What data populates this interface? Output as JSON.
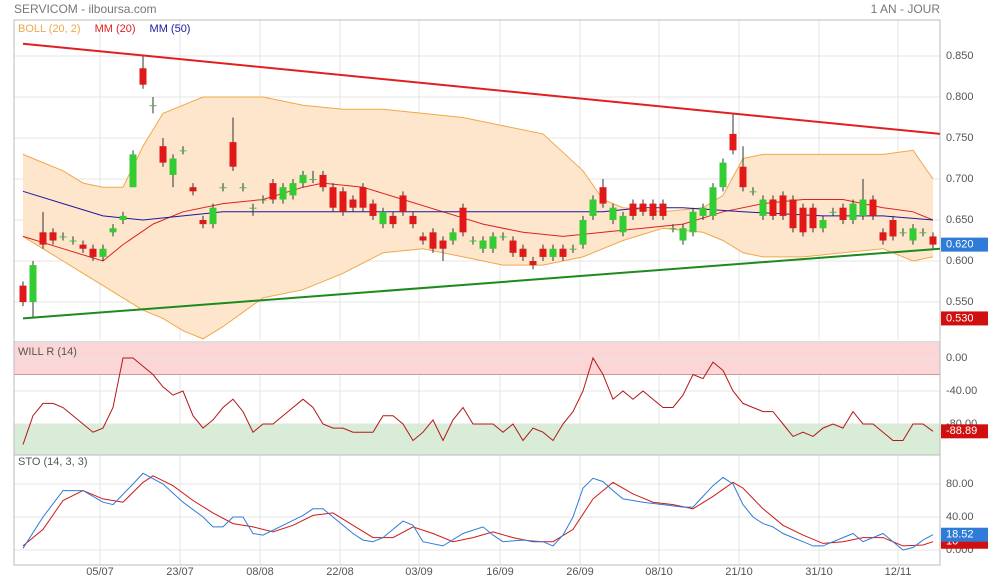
{
  "chart_data": [
    {
      "type": "candlestick",
      "title": "SERVICOM - ilboursa.com",
      "period": "1 AN - JOUR",
      "up_color": "#33cc33",
      "down_color": "#e01818",
      "open": [
        0.57,
        0.55,
        0.635,
        0.635,
        0.63,
        0.625,
        0.62,
        0.615,
        0.605,
        0.635,
        0.65,
        0.69,
        0.835,
        0.79,
        0.74,
        0.705,
        0.735,
        0.69,
        0.65,
        0.645,
        0.69,
        0.745,
        0.69,
        0.665,
        0.675,
        0.695,
        0.675,
        0.68,
        0.695,
        0.7,
        0.705,
        0.69,
        0.685,
        0.675,
        0.69,
        0.67,
        0.645,
        0.655,
        0.68,
        0.655,
        0.63,
        0.635,
        0.625,
        0.625,
        0.665,
        0.625,
        0.615,
        0.615,
        0.63,
        0.625,
        0.615,
        0.6,
        0.615,
        0.605,
        0.615,
        0.615,
        0.62,
        0.655,
        0.69,
        0.65,
        0.635,
        0.67,
        0.67,
        0.67,
        0.67,
        0.64,
        0.625,
        0.635,
        0.655,
        0.655,
        0.69,
        0.755,
        0.715,
        0.685,
        0.655,
        0.675,
        0.68,
        0.675,
        0.665,
        0.665,
        0.64,
        0.66,
        0.665,
        0.65,
        0.655,
        0.675,
        0.635,
        0.65,
        0.635,
        0.625,
        0.635,
        0.63
      ],
      "high": [
        0.575,
        0.6,
        0.66,
        0.64,
        0.635,
        0.63,
        0.625,
        0.62,
        0.62,
        0.645,
        0.66,
        0.735,
        0.85,
        0.8,
        0.75,
        0.73,
        0.74,
        0.695,
        0.655,
        0.67,
        0.695,
        0.775,
        0.695,
        0.67,
        0.68,
        0.7,
        0.695,
        0.7,
        0.71,
        0.71,
        0.71,
        0.695,
        0.69,
        0.68,
        0.695,
        0.675,
        0.665,
        0.66,
        0.685,
        0.66,
        0.635,
        0.64,
        0.63,
        0.64,
        0.67,
        0.63,
        0.63,
        0.635,
        0.635,
        0.63,
        0.62,
        0.605,
        0.62,
        0.62,
        0.62,
        0.62,
        0.655,
        0.68,
        0.7,
        0.67,
        0.66,
        0.675,
        0.675,
        0.675,
        0.675,
        0.645,
        0.645,
        0.665,
        0.67,
        0.695,
        0.725,
        0.78,
        0.74,
        0.69,
        0.68,
        0.68,
        0.685,
        0.68,
        0.67,
        0.67,
        0.655,
        0.665,
        0.67,
        0.675,
        0.7,
        0.68,
        0.64,
        0.655,
        0.64,
        0.645,
        0.64,
        0.635
      ],
      "low": [
        0.545,
        0.53,
        0.615,
        0.62,
        0.625,
        0.62,
        0.61,
        0.6,
        0.6,
        0.63,
        0.645,
        0.69,
        0.81,
        0.78,
        0.715,
        0.69,
        0.73,
        0.68,
        0.64,
        0.64,
        0.685,
        0.71,
        0.685,
        0.655,
        0.67,
        0.67,
        0.67,
        0.675,
        0.69,
        0.695,
        0.685,
        0.66,
        0.655,
        0.66,
        0.66,
        0.65,
        0.64,
        0.64,
        0.655,
        0.64,
        0.62,
        0.61,
        0.6,
        0.62,
        0.63,
        0.62,
        0.61,
        0.61,
        0.625,
        0.605,
        0.6,
        0.59,
        0.6,
        0.6,
        0.6,
        0.61,
        0.615,
        0.65,
        0.665,
        0.645,
        0.63,
        0.65,
        0.655,
        0.65,
        0.65,
        0.635,
        0.62,
        0.63,
        0.65,
        0.65,
        0.685,
        0.73,
        0.685,
        0.68,
        0.65,
        0.65,
        0.65,
        0.635,
        0.63,
        0.635,
        0.635,
        0.655,
        0.645,
        0.645,
        0.65,
        0.65,
        0.62,
        0.625,
        0.63,
        0.62,
        0.63,
        0.615
      ],
      "close": [
        0.55,
        0.595,
        0.62,
        0.625,
        0.63,
        0.625,
        0.615,
        0.605,
        0.615,
        0.64,
        0.655,
        0.73,
        0.815,
        0.79,
        0.72,
        0.725,
        0.735,
        0.685,
        0.645,
        0.665,
        0.69,
        0.715,
        0.69,
        0.665,
        0.675,
        0.675,
        0.69,
        0.695,
        0.705,
        0.7,
        0.69,
        0.665,
        0.66,
        0.665,
        0.665,
        0.655,
        0.66,
        0.645,
        0.66,
        0.645,
        0.625,
        0.615,
        0.615,
        0.635,
        0.635,
        0.625,
        0.625,
        0.63,
        0.63,
        0.61,
        0.605,
        0.595,
        0.605,
        0.615,
        0.605,
        0.615,
        0.65,
        0.675,
        0.67,
        0.665,
        0.655,
        0.655,
        0.66,
        0.655,
        0.655,
        0.64,
        0.64,
        0.66,
        0.665,
        0.69,
        0.72,
        0.735,
        0.69,
        0.685,
        0.675,
        0.655,
        0.655,
        0.64,
        0.635,
        0.64,
        0.65,
        0.66,
        0.65,
        0.67,
        0.675,
        0.655,
        0.625,
        0.63,
        0.635,
        0.64,
        0.635,
        0.62
      ],
      "bands": {
        "name": "BOLL (20, 2)",
        "color": "#f0a848",
        "fill": "#fde6cc",
        "x": [
          0,
          2,
          4,
          6,
          8,
          10,
          12,
          14,
          16,
          18,
          20,
          24,
          28,
          32,
          36,
          40,
          44,
          48,
          52,
          56,
          58,
          60,
          64,
          68,
          70,
          72,
          74,
          78,
          82,
          86,
          89,
          91
        ],
        "upper": [
          0.73,
          0.72,
          0.71,
          0.695,
          0.69,
          0.69,
          0.74,
          0.78,
          0.79,
          0.8,
          0.8,
          0.8,
          0.79,
          0.785,
          0.785,
          0.78,
          0.775,
          0.765,
          0.755,
          0.71,
          0.675,
          0.665,
          0.66,
          0.665,
          0.68,
          0.725,
          0.73,
          0.73,
          0.73,
          0.73,
          0.735,
          0.7
        ],
        "lower": [
          0.63,
          0.615,
          0.6,
          0.585,
          0.57,
          0.555,
          0.54,
          0.53,
          0.515,
          0.505,
          0.52,
          0.555,
          0.565,
          0.585,
          0.61,
          0.615,
          0.605,
          0.595,
          0.595,
          0.605,
          0.615,
          0.625,
          0.64,
          0.635,
          0.625,
          0.61,
          0.605,
          0.605,
          0.61,
          0.615,
          0.6,
          0.605
        ]
      },
      "series": [
        {
          "name": "MM (20)",
          "color": "#e02020",
          "x": [
            0,
            4,
            8,
            10,
            13,
            16,
            20,
            24,
            28,
            30,
            34,
            38,
            42,
            46,
            50,
            54,
            58,
            62,
            66,
            70,
            74,
            78,
            82,
            86,
            89,
            91
          ],
          "values": [
            0.63,
            0.615,
            0.6,
            0.62,
            0.645,
            0.66,
            0.67,
            0.675,
            0.69,
            0.695,
            0.69,
            0.675,
            0.66,
            0.645,
            0.635,
            0.63,
            0.635,
            0.64,
            0.645,
            0.66,
            0.67,
            0.675,
            0.675,
            0.665,
            0.66,
            0.65
          ]
        },
        {
          "name": "MM (50)",
          "color": "#1a1aa0",
          "x": [
            0,
            4,
            8,
            12,
            16,
            20,
            30,
            40,
            50,
            58,
            62,
            66,
            72,
            80,
            86,
            91
          ],
          "values": [
            0.685,
            0.67,
            0.655,
            0.65,
            0.655,
            0.66,
            0.66,
            0.66,
            0.66,
            0.66,
            0.665,
            0.665,
            0.66,
            0.655,
            0.655,
            0.65
          ]
        }
      ],
      "trendlines": [
        {
          "color": "#e02020",
          "x": [
            0,
            91.7
          ],
          "values": [
            0.865,
            0.755
          ]
        },
        {
          "color": "#1e8a1e",
          "x": [
            0,
            91.7
          ],
          "values": [
            0.53,
            0.615
          ]
        }
      ],
      "price_labels": [
        {
          "value": 0.62,
          "label": "0.620",
          "color": "#2f7bd8"
        },
        {
          "value": 0.53,
          "label": "0.530",
          "color": "#d01010"
        }
      ],
      "ylim": [
        0.5037,
        0.8939
      ],
      "yticks": [
        {
          "value": 0.85,
          "label": "0.850"
        },
        {
          "value": 0.8,
          "label": "0.800"
        },
        {
          "value": 0.75,
          "label": "0.750"
        },
        {
          "value": 0.7,
          "label": "0.700"
        },
        {
          "value": 0.65,
          "label": "0.650"
        },
        {
          "value": 0.6,
          "label": "0.600"
        },
        {
          "value": 0.55,
          "label": "0.550"
        }
      ]
    },
    {
      "type": "line",
      "title": "WILL R (14)",
      "overbought": -20,
      "overbought_color": "#fcd6d6",
      "oversold": -80,
      "oversold_color": "#d8ecd8",
      "series": [
        {
          "color": "#b41818",
          "box_color": "#d01010",
          "values": [
            -105,
            -70,
            -55,
            -55,
            -60,
            -70,
            -80,
            -90,
            -85,
            -60,
            0,
            0,
            -10,
            -20,
            -35,
            -45,
            -40,
            -70,
            -85,
            -75,
            -60,
            -50,
            -65,
            -90,
            -80,
            -80,
            -70,
            -60,
            -50,
            -60,
            -80,
            -85,
            -85,
            -90,
            -90,
            -90,
            -70,
            -70,
            -80,
            -100,
            -90,
            -75,
            -100,
            -75,
            -60,
            -80,
            -80,
            -80,
            -90,
            -80,
            -100,
            -85,
            -90,
            -100,
            -80,
            -65,
            -40,
            0,
            -20,
            -50,
            -40,
            -50,
            -40,
            -50,
            -60,
            -60,
            -45,
            -20,
            -25,
            -5,
            -15,
            -40,
            -55,
            -60,
            -65,
            -65,
            -80,
            -95,
            -90,
            -95,
            -85,
            -80,
            -85,
            -65,
            -80,
            -80,
            -90,
            -100,
            -100,
            -80,
            -80,
            -88.89
          ]
        }
      ],
      "ylim": [
        -117.6,
        18.2
      ],
      "yticks": [
        {
          "value": 0,
          "label": "0.00"
        },
        {
          "value": -40,
          "label": "-40.00"
        },
        {
          "value": -80,
          "label": "-80.00"
        }
      ]
    },
    {
      "type": "line",
      "title": "STO (14, 3, 3)",
      "series": [
        {
          "color": "#d01818",
          "box_color": "#d01010",
          "x": [
            0,
            2,
            4,
            6,
            8,
            10,
            12,
            13,
            15,
            17,
            19,
            21,
            23,
            25,
            27,
            29,
            31,
            33,
            35,
            37,
            39,
            41,
            43,
            45,
            47,
            49,
            51,
            53,
            55,
            57,
            59,
            61,
            63,
            65,
            67,
            69,
            71,
            72,
            74,
            76,
            78,
            80,
            82,
            84,
            86,
            88,
            90,
            91
          ],
          "values": [
            5,
            25,
            60,
            72,
            62,
            58,
            82,
            90,
            78,
            60,
            45,
            32,
            28,
            22,
            30,
            42,
            45,
            30,
            15,
            15,
            28,
            20,
            10,
            15,
            22,
            15,
            10,
            10,
            25,
            62,
            82,
            68,
            58,
            55,
            50,
            65,
            82,
            75,
            50,
            30,
            18,
            8,
            10,
            15,
            15,
            5,
            6,
            10
          ]
        },
        {
          "color": "#2f7bd8",
          "box_color": "#2f7bd8",
          "x": [
            0,
            2,
            4,
            6,
            8,
            9,
            11,
            12,
            14,
            16,
            18,
            19,
            20,
            21,
            22,
            23,
            24,
            26,
            28,
            29,
            30,
            31,
            32,
            33,
            34,
            35,
            36,
            38,
            39,
            40,
            42,
            44,
            46,
            47,
            48,
            50,
            52,
            53,
            54,
            55,
            56,
            57,
            58,
            59,
            60,
            62,
            64,
            66,
            67,
            68,
            69,
            70,
            71,
            72,
            73,
            74,
            75,
            76,
            77,
            78,
            79,
            80,
            81,
            82,
            83,
            84,
            85,
            86,
            87,
            88,
            89,
            90,
            91
          ],
          "values": [
            2,
            40,
            72,
            72,
            58,
            55,
            80,
            93,
            80,
            58,
            40,
            28,
            28,
            40,
            40,
            20,
            18,
            30,
            42,
            50,
            50,
            40,
            30,
            20,
            12,
            10,
            15,
            35,
            30,
            10,
            5,
            20,
            28,
            18,
            10,
            12,
            10,
            5,
            18,
            40,
            75,
            87,
            83,
            72,
            62,
            58,
            55,
            52,
            52,
            65,
            78,
            88,
            80,
            55,
            40,
            32,
            28,
            20,
            15,
            10,
            5,
            5,
            10,
            15,
            20,
            10,
            15,
            20,
            10,
            0,
            3,
            12,
            18.52
          ]
        }
      ],
      "ylim": [
        -18.2,
        115.2
      ],
      "yticks": [
        {
          "value": 80,
          "label": "80.00"
        },
        {
          "value": 40,
          "label": "40.00"
        },
        {
          "value": 0,
          "label": "0.000"
        }
      ],
      "xlim": [
        -0.9,
        91.7
      ],
      "xticks": [
        {
          "value": 7.7,
          "label": "05/07"
        },
        {
          "value": 15.7,
          "label": "23/07"
        },
        {
          "value": 23.7,
          "label": "08/08"
        },
        {
          "value": 31.7,
          "label": "22/08"
        },
        {
          "value": 39.6,
          "label": "03/09"
        },
        {
          "value": 47.7,
          "label": "16/09"
        },
        {
          "value": 55.7,
          "label": "26/09"
        },
        {
          "value": 63.6,
          "label": "08/10"
        },
        {
          "value": 71.6,
          "label": "21/10"
        },
        {
          "value": 79.6,
          "label": "31/10"
        },
        {
          "value": 87.5,
          "label": "12/11"
        }
      ]
    }
  ]
}
